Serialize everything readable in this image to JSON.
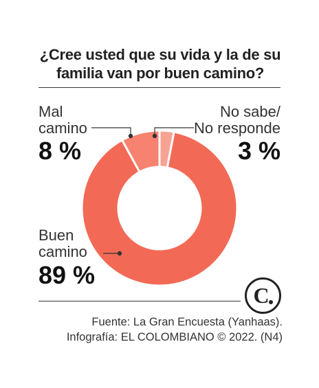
{
  "title_line1": "¿Cree usted que su vida y la de su",
  "title_line2": "familia van por buen camino?",
  "chart_data": {
    "type": "pie",
    "title": "¿Cree usted que su vida y la de su familia van por buen camino?",
    "categories": [
      "Buen camino",
      "Mal camino",
      "No sabe/ No responde"
    ],
    "values": [
      89,
      8,
      3
    ],
    "colors": [
      "#f26a56",
      "#f6826f",
      "#f7a394"
    ],
    "labels": {
      "mal": {
        "line1": "Mal",
        "line2": "camino",
        "value": "8 %"
      },
      "nosabe": {
        "line1": "No sabe/",
        "line2": "No responde",
        "value": "3 %"
      },
      "buen": {
        "line1": "Buen",
        "line2": "camino",
        "value": "89 %"
      }
    }
  },
  "logo_letter": "C",
  "source_line1": "Fuente: La Gran Encuesta (Yanhaas).",
  "source_line2": "Infografía: EL COLOMBIANO © 2022. (N4)"
}
